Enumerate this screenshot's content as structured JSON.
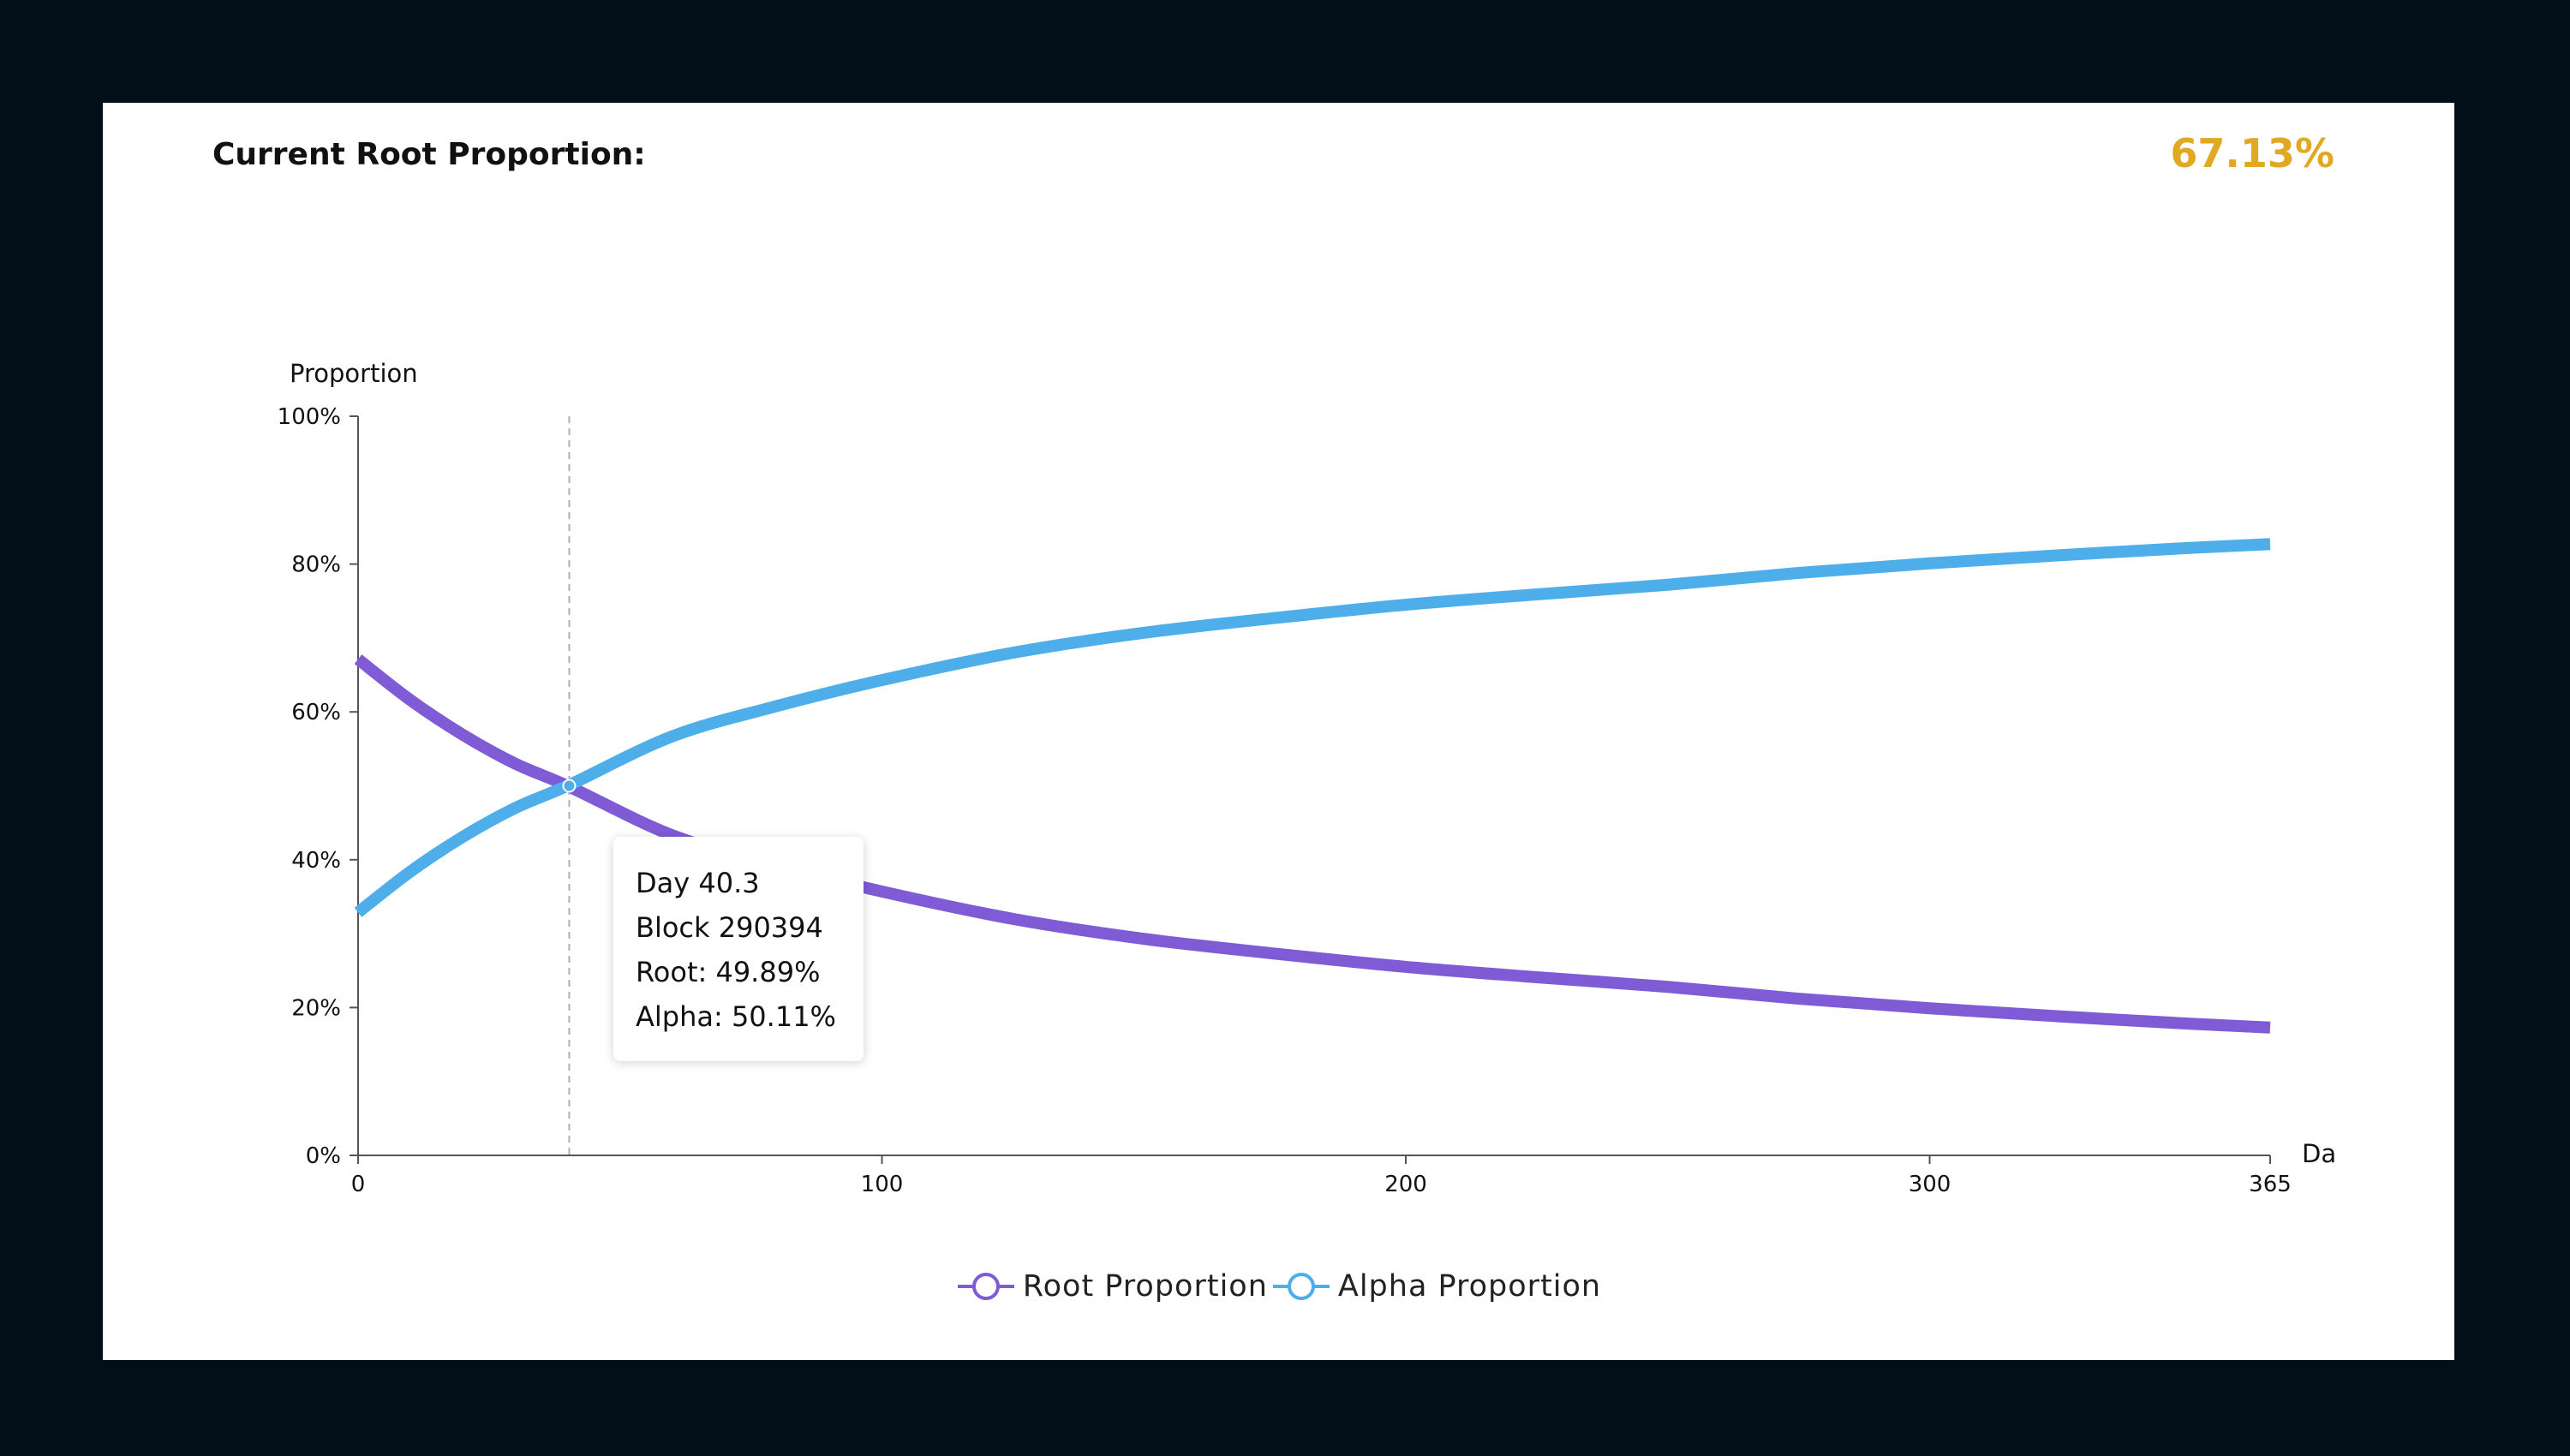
{
  "header": {
    "label": "Current Root Proportion:",
    "value": "67.13%"
  },
  "tooltip": {
    "day": "Day 40.3",
    "block": "Block 290394",
    "root": "Root: 49.89%",
    "alpha": "Alpha: 50.11%"
  },
  "colors": {
    "root": "#7f5bd6",
    "alpha": "#4daeea",
    "accent": "#e1a823"
  },
  "chart_data": {
    "type": "line",
    "ylabel": "Proportion",
    "xlabel": "Da",
    "xlim": [
      0,
      365
    ],
    "ylim": [
      0,
      100
    ],
    "x_ticks": [
      0,
      100,
      200,
      300,
      365
    ],
    "y_ticks": [
      "0%",
      "20%",
      "40%",
      "60%",
      "80%",
      "100%"
    ],
    "y_tick_values": [
      0,
      20,
      40,
      60,
      80,
      100
    ],
    "hover_x": 40.3,
    "hover_y": 50,
    "grid": false,
    "legend_position": "bottom-center",
    "series": [
      {
        "name": "Root Proportion",
        "x": [
          0,
          10,
          20,
          30,
          40.3,
          60,
          80,
          100,
          125,
          150,
          175,
          200,
          225,
          250,
          275,
          300,
          325,
          350,
          365
        ],
        "y": [
          67.13,
          61.6,
          56.9,
          53.0,
          49.89,
          43.3,
          39.2,
          35.7,
          32.0,
          29.3,
          27.3,
          25.5,
          24.1,
          22.8,
          21.2,
          19.9,
          18.8,
          17.8,
          17.3
        ]
      },
      {
        "name": "Alpha Proportion",
        "x": [
          0,
          10,
          20,
          30,
          40.3,
          60,
          80,
          100,
          125,
          150,
          175,
          200,
          225,
          250,
          275,
          300,
          325,
          350,
          365
        ],
        "y": [
          32.87,
          38.4,
          43.1,
          47.0,
          50.11,
          56.7,
          60.8,
          64.3,
          68.0,
          70.7,
          72.7,
          74.5,
          75.9,
          77.2,
          78.8,
          80.1,
          81.2,
          82.2,
          82.7
        ]
      }
    ]
  }
}
